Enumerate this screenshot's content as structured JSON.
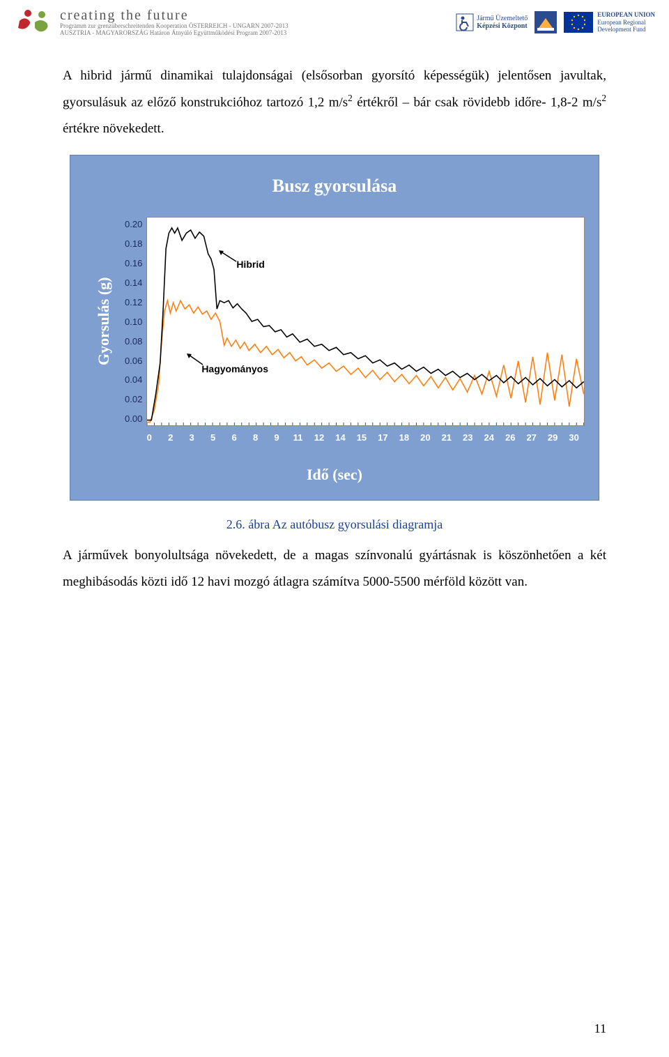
{
  "header": {
    "ctf_title": "creating the future",
    "ctf_sub1": "Programm zur grenzüberschreitenden Kooperation ÖSTERREICH - UNGARN 2007-2013",
    "ctf_sub2": "AUSZTRIA - MAGYARORSZÁG Határon Átnyúló Együttműködési Program 2007-2013",
    "juk_line1": "Jármű Üzemeltető",
    "juk_line2": "Képzési Központ",
    "eu_line1": "EUROPEAN UNION",
    "eu_line2": "European Regional",
    "eu_line3": "Development Fund"
  },
  "body": {
    "p1a": "A hibrid jármű dinamikai tulajdonságai (elsősorban gyorsító képességük) jelentősen javultak, gyorsulásuk az előző konstrukcióhoz tartozó 1,2 m/s",
    "p1b": " értékről – bár csak rövidebb időre- 1,8-2 m/s",
    "p1c": " értékre növekedett.",
    "caption": "2.6. ábra Az autóbusz gyorsulási diagramja",
    "p2": "A járművek bonyolultsága növekedett, de a magas színvonalú gyártásnak is köszönhetően a két meghibásodás közti idő 12 havi mozgó átlagra számítva 5000-5500 mérföld között van."
  },
  "chart": {
    "title": "Busz gyorsulása",
    "ylabel": "Gyorsulás (g)",
    "xlabel": "Idő (sec)",
    "y_ticks": [
      "0.20",
      "0.18",
      "0.16",
      "0.14",
      "0.12",
      "0.10",
      "0.08",
      "0.06",
      "0.04",
      "0.02",
      "0.00"
    ],
    "x_ticks": [
      "0",
      "2",
      "3",
      "5",
      "6",
      "8",
      "9",
      "11",
      "12",
      "14",
      "15",
      "17",
      "18",
      "20",
      "21",
      "23",
      "24",
      "26",
      "27",
      "29",
      "30"
    ],
    "ylim": [
      0,
      0.2
    ],
    "xlim": [
      0,
      30
    ],
    "background_color": "#ffffff",
    "panel_color": "#7e9fcf",
    "hybrid": {
      "label": "Hibrid",
      "color": "#000000",
      "width": 1.6,
      "points": [
        [
          0,
          0.005
        ],
        [
          0.3,
          0.005
        ],
        [
          0.6,
          0.03
        ],
        [
          0.9,
          0.06
        ],
        [
          1.1,
          0.11
        ],
        [
          1.3,
          0.17
        ],
        [
          1.5,
          0.185
        ],
        [
          1.7,
          0.19
        ],
        [
          1.9,
          0.185
        ],
        [
          2.1,
          0.19
        ],
        [
          2.4,
          0.178
        ],
        [
          2.7,
          0.185
        ],
        [
          3.0,
          0.188
        ],
        [
          3.3,
          0.18
        ],
        [
          3.6,
          0.186
        ],
        [
          3.9,
          0.182
        ],
        [
          4.2,
          0.165
        ],
        [
          4.4,
          0.16
        ],
        [
          4.6,
          0.15
        ],
        [
          4.8,
          0.112
        ],
        [
          5.0,
          0.12
        ],
        [
          5.3,
          0.118
        ],
        [
          5.6,
          0.12
        ],
        [
          5.9,
          0.113
        ],
        [
          6.2,
          0.117
        ],
        [
          6.5,
          0.112
        ],
        [
          6.8,
          0.108
        ],
        [
          7.2,
          0.1
        ],
        [
          7.6,
          0.102
        ],
        [
          8.0,
          0.095
        ],
        [
          8.4,
          0.096
        ],
        [
          8.8,
          0.09
        ],
        [
          9.2,
          0.092
        ],
        [
          9.6,
          0.085
        ],
        [
          10,
          0.088
        ],
        [
          10.5,
          0.08
        ],
        [
          11,
          0.083
        ],
        [
          11.5,
          0.076
        ],
        [
          12,
          0.078
        ],
        [
          12.5,
          0.072
        ],
        [
          13,
          0.075
        ],
        [
          13.5,
          0.068
        ],
        [
          14,
          0.07
        ],
        [
          14.5,
          0.064
        ],
        [
          15,
          0.067
        ],
        [
          15.5,
          0.06
        ],
        [
          16,
          0.063
        ],
        [
          16.5,
          0.057
        ],
        [
          17,
          0.06
        ],
        [
          17.5,
          0.054
        ],
        [
          18,
          0.058
        ],
        [
          18.5,
          0.052
        ],
        [
          19,
          0.056
        ],
        [
          19.5,
          0.05
        ],
        [
          20,
          0.054
        ],
        [
          20.5,
          0.048
        ],
        [
          21,
          0.052
        ],
        [
          21.5,
          0.046
        ],
        [
          22,
          0.05
        ],
        [
          22.5,
          0.044
        ],
        [
          23,
          0.049
        ],
        [
          23.5,
          0.043
        ],
        [
          24,
          0.048
        ],
        [
          24.5,
          0.041
        ],
        [
          25,
          0.047
        ],
        [
          25.5,
          0.04
        ],
        [
          26,
          0.046
        ],
        [
          26.5,
          0.039
        ],
        [
          27,
          0.045
        ],
        [
          27.5,
          0.038
        ],
        [
          28,
          0.044
        ],
        [
          28.5,
          0.037
        ],
        [
          29,
          0.043
        ],
        [
          29.5,
          0.036
        ],
        [
          30,
          0.042
        ]
      ]
    },
    "conventional": {
      "label": "Hagyományos",
      "color": "#ff7f0e",
      "width": 1.6,
      "points": [
        [
          0,
          0.003
        ],
        [
          0.2,
          0.003
        ],
        [
          0.5,
          0.015
        ],
        [
          0.8,
          0.04
        ],
        [
          1.0,
          0.08
        ],
        [
          1.2,
          0.11
        ],
        [
          1.4,
          0.12
        ],
        [
          1.6,
          0.108
        ],
        [
          1.8,
          0.118
        ],
        [
          2.0,
          0.11
        ],
        [
          2.3,
          0.12
        ],
        [
          2.6,
          0.112
        ],
        [
          2.9,
          0.116
        ],
        [
          3.2,
          0.108
        ],
        [
          3.5,
          0.114
        ],
        [
          3.8,
          0.107
        ],
        [
          4.1,
          0.11
        ],
        [
          4.4,
          0.102
        ],
        [
          4.7,
          0.108
        ],
        [
          5.0,
          0.1
        ],
        [
          5.3,
          0.077
        ],
        [
          5.5,
          0.084
        ],
        [
          5.8,
          0.076
        ],
        [
          6.1,
          0.082
        ],
        [
          6.4,
          0.074
        ],
        [
          6.7,
          0.08
        ],
        [
          7.0,
          0.072
        ],
        [
          7.4,
          0.078
        ],
        [
          7.8,
          0.07
        ],
        [
          8.2,
          0.076
        ],
        [
          8.6,
          0.068
        ],
        [
          9.0,
          0.073
        ],
        [
          9.4,
          0.065
        ],
        [
          9.8,
          0.07
        ],
        [
          10.2,
          0.062
        ],
        [
          10.6,
          0.066
        ],
        [
          11,
          0.058
        ],
        [
          11.5,
          0.063
        ],
        [
          12,
          0.055
        ],
        [
          12.5,
          0.06
        ],
        [
          13,
          0.052
        ],
        [
          13.5,
          0.057
        ],
        [
          14,
          0.049
        ],
        [
          14.5,
          0.055
        ],
        [
          15,
          0.046
        ],
        [
          15.5,
          0.053
        ],
        [
          16,
          0.044
        ],
        [
          16.5,
          0.051
        ],
        [
          17,
          0.042
        ],
        [
          17.5,
          0.049
        ],
        [
          18,
          0.04
        ],
        [
          18.5,
          0.048
        ],
        [
          19,
          0.038
        ],
        [
          19.5,
          0.047
        ],
        [
          20,
          0.036
        ],
        [
          20.5,
          0.046
        ],
        [
          21,
          0.034
        ],
        [
          21.5,
          0.045
        ],
        [
          22,
          0.032
        ],
        [
          22.5,
          0.048
        ],
        [
          23,
          0.03
        ],
        [
          23.5,
          0.052
        ],
        [
          24,
          0.028
        ],
        [
          24.5,
          0.058
        ],
        [
          25,
          0.026
        ],
        [
          25.5,
          0.062
        ],
        [
          26,
          0.022
        ],
        [
          26.5,
          0.066
        ],
        [
          27,
          0.02
        ],
        [
          27.5,
          0.07
        ],
        [
          28,
          0.024
        ],
        [
          28.5,
          0.068
        ],
        [
          29,
          0.018
        ],
        [
          29.5,
          0.064
        ],
        [
          30,
          0.03
        ]
      ]
    }
  },
  "page_number": "11"
}
